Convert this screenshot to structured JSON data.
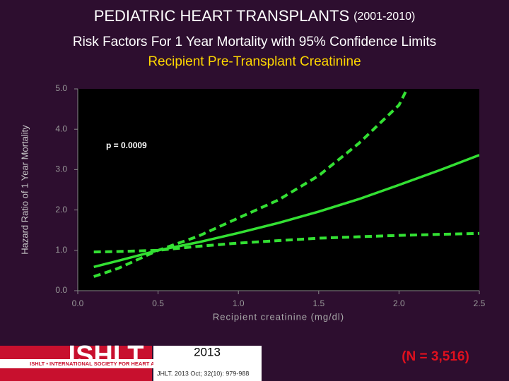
{
  "chart_data": {
    "type": "line",
    "title": "PEDIATRIC HEART TRANSPLANTS",
    "title_years": "(2001-2010)",
    "subtitle": "Risk Factors For 1 Year Mortality with 95% Confidence Limits",
    "subtitle2": "Recipient Pre-Transplant Creatinine",
    "annotation": "p = 0.0009",
    "xlabel": "Recipient creatinine (mg/dl)",
    "ylabel": "Hazard Ratio of 1 Year Mortality",
    "xlim": [
      0,
      2.5
    ],
    "ylim": [
      0,
      5
    ],
    "xticks": [
      {
        "value": 0,
        "label": "0.0"
      },
      {
        "value": 0.5,
        "label": "0.5"
      },
      {
        "value": 1,
        "label": "1.0"
      },
      {
        "value": 1.5,
        "label": "1.5"
      },
      {
        "value": 2,
        "label": "2.0"
      },
      {
        "value": 2.5,
        "label": "2.5"
      }
    ],
    "yticks": [
      {
        "value": 0,
        "label": "0.0"
      },
      {
        "value": 1,
        "label": "1.0"
      },
      {
        "value": 2,
        "label": "2.0"
      },
      {
        "value": 3,
        "label": "3.0"
      },
      {
        "value": 4,
        "label": "4.0"
      },
      {
        "value": 5,
        "label": "5.0"
      }
    ],
    "series": [
      {
        "style": "solid",
        "color": "#33e033",
        "x": [
          0.1,
          0.25,
          0.5,
          0.75,
          1.0,
          1.25,
          1.5,
          1.75,
          2.0,
          2.25,
          2.5
        ],
        "values": [
          0.59,
          0.74,
          1.0,
          1.2,
          1.43,
          1.68,
          1.96,
          2.27,
          2.62,
          2.98,
          3.36
        ]
      },
      {
        "style": "dashed",
        "color": "#33e033",
        "x": [
          0.1,
          0.25,
          0.5,
          0.75,
          1.0,
          1.25,
          1.5,
          1.75,
          2.0,
          2.05
        ],
        "values": [
          0.35,
          0.55,
          1.0,
          1.35,
          1.8,
          2.25,
          2.85,
          3.65,
          4.6,
          5.0
        ]
      },
      {
        "style": "dashed",
        "color": "#33e033",
        "x": [
          0.1,
          0.25,
          0.5,
          0.75,
          1.0,
          1.5,
          2.0,
          2.5
        ],
        "values": [
          0.96,
          0.97,
          1.0,
          1.1,
          1.18,
          1.3,
          1.37,
          1.42
        ]
      }
    ],
    "footer": {
      "logo": "ISHLT",
      "society": "ISHLT • INTERNATIONAL SOCIETY FOR HEART AND LUNG TRANSPLANTATION",
      "year": "2013",
      "citation": "JHLT. 2013 Oct; 32(10): 979-988",
      "n": "(N = 3,516)"
    }
  }
}
